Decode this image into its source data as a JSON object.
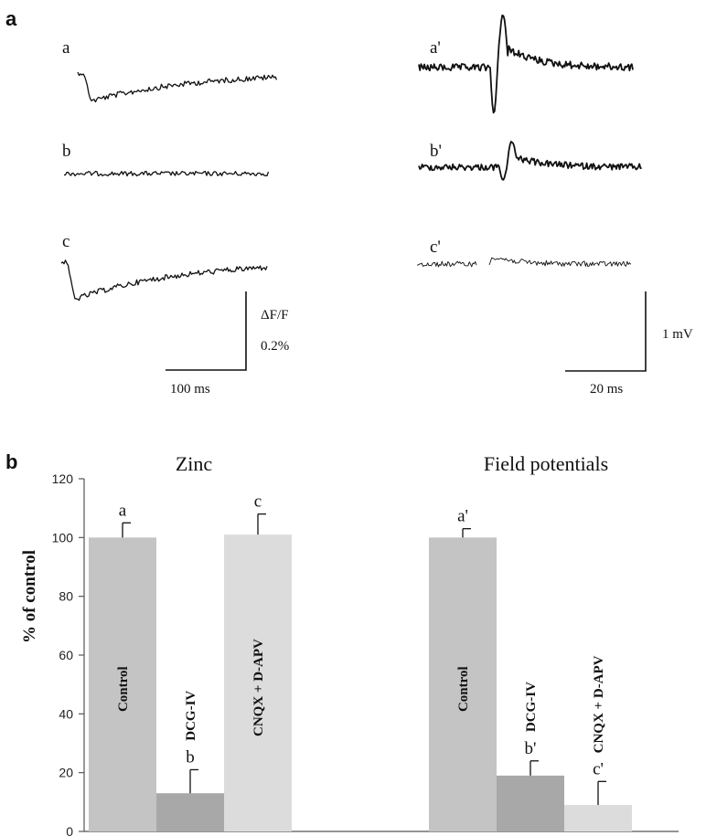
{
  "panel_a": {
    "panel_label": "a",
    "zinc_traces": [
      {
        "label": "a",
        "shape": "dip_recover"
      },
      {
        "label": "b",
        "shape": "flat"
      },
      {
        "label": "c",
        "shape": "dip_recover_deep"
      }
    ],
    "field_traces": [
      {
        "label": "a'",
        "shape": "biphasic_large"
      },
      {
        "label": "b'",
        "shape": "biphasic_small"
      },
      {
        "label": "c'",
        "shape": "biphasic_tiny"
      }
    ],
    "zinc_scale": {
      "y_label": "ΔF/F",
      "y_value": "0.2%",
      "x_label": "100 ms"
    },
    "field_scale": {
      "y_label": "1 mV",
      "x_label": "20 ms"
    }
  },
  "panel_b": {
    "panel_label": "b",
    "chart_data": {
      "type": "bar",
      "ylabel": "% of control",
      "ylim": [
        0,
        120
      ],
      "yticks": [
        0,
        20,
        40,
        60,
        80,
        100,
        120
      ],
      "groups": [
        {
          "title": "Zinc",
          "bars": [
            {
              "category": "Control",
              "letter": "a",
              "value": 100,
              "error": 5,
              "color": "#c4c4c4"
            },
            {
              "category": "DCG-IV",
              "letter": "b",
              "value": 13,
              "error": 8,
              "color": "#a8a8a8"
            },
            {
              "category": "CNQX + D-APV",
              "letter": "c",
              "value": 101,
              "error": 7,
              "color": "#dcdcdc"
            }
          ]
        },
        {
          "title": "Field potentials",
          "bars": [
            {
              "category": "Control",
              "letter": "a'",
              "value": 100,
              "error": 3,
              "color": "#c4c4c4"
            },
            {
              "category": "DCG-IV",
              "letter": "b'",
              "value": 19,
              "error": 5,
              "color": "#a8a8a8"
            },
            {
              "category": "CNQX + D-APV",
              "letter": "c'",
              "value": 9,
              "error": 8,
              "color": "#dcdcdc"
            }
          ]
        }
      ]
    }
  }
}
